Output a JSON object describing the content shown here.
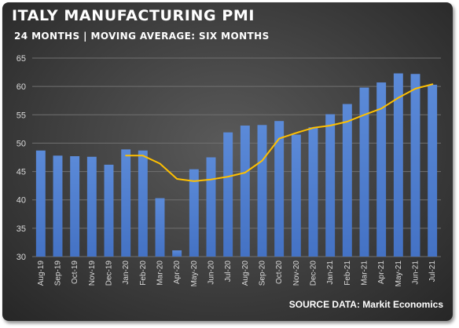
{
  "header": {
    "title": "ITALY MANUFACTURING PMI",
    "subtitle": "24 MONTHS | MOVING AVERAGE: SIX MONTHS"
  },
  "footer": {
    "source": "SOURCE DATA: Markit Economics"
  },
  "colors": {
    "bar": "#4472C4",
    "moving_average": "#FFC000",
    "grid": "#707070",
    "background": "#3e3e3e"
  },
  "chart_data": {
    "type": "bar",
    "title": "ITALY MANUFACTURING PMI",
    "subtitle": "24 MONTHS | MOVING AVERAGE: SIX MONTHS",
    "xlabel": "",
    "ylabel": "",
    "ylim": [
      30,
      65
    ],
    "yticks": [
      30,
      35,
      40,
      45,
      50,
      55,
      60,
      65
    ],
    "grid": true,
    "categories": [
      "Aug-19",
      "Sep-19",
      "Oct-19",
      "Nov-19",
      "Dec-19",
      "Jan-20",
      "Feb-20",
      "Mar-20",
      "Apr-20",
      "May-20",
      "Jun-20",
      "Jul-20",
      "Aug-20",
      "Sep-20",
      "Oct-20",
      "Nov-20",
      "Dec-20",
      "Jan-21",
      "Feb-21",
      "Mar-21",
      "Apr-21",
      "May-21",
      "Jun-21",
      "Jul-21"
    ],
    "series": [
      {
        "type": "bar",
        "values": [
          48.7,
          47.8,
          47.7,
          47.6,
          46.2,
          48.9,
          48.7,
          40.3,
          31.1,
          45.4,
          47.5,
          51.9,
          53.1,
          53.2,
          53.9,
          51.5,
          52.8,
          55.1,
          56.9,
          59.8,
          60.7,
          62.3,
          62.2,
          60.3
        ]
      },
      {
        "type": "line",
        "values": [
          null,
          null,
          null,
          null,
          null,
          47.8,
          47.8,
          46.4,
          43.7,
          43.3,
          43.6,
          44.1,
          44.8,
          46.9,
          50.8,
          51.8,
          52.7,
          53.1,
          53.8,
          55.0,
          56.1,
          58.0,
          59.6,
          60.4
        ]
      }
    ]
  }
}
